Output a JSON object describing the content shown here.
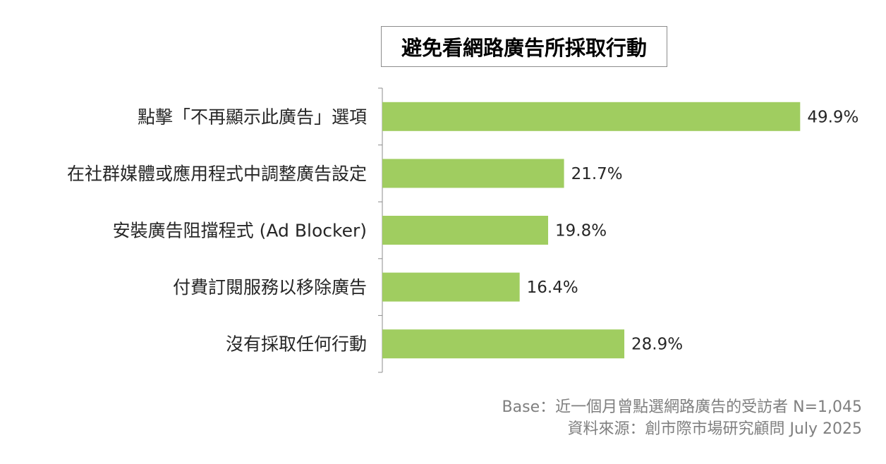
{
  "chart_data": {
    "type": "bar",
    "orientation": "horizontal",
    "title": "避免看網路廣告所採取行動",
    "categories": [
      "點擊「不再顯示此廣告」選項",
      "在社群媒體或應用程式中調整廣告設定",
      "安裝廣告阻擋程式 (Ad Blocker)",
      "付費訂閱服務以移除廣告",
      "沒有採取任何行動"
    ],
    "values": [
      49.9,
      21.7,
      19.8,
      16.4,
      28.9
    ],
    "value_labels": [
      "49.9%",
      "21.7%",
      "19.8%",
      "16.4%",
      "28.9%"
    ],
    "bar_color": "#a0cd60",
    "xlim": [
      0,
      55
    ],
    "grid": false,
    "legend": "none"
  },
  "footnotes": {
    "base": "Base：近一個月曾點選網路廣告的受訪者 N=1,045",
    "source": "資料來源：創市際市場研究顧問 July 2025"
  }
}
